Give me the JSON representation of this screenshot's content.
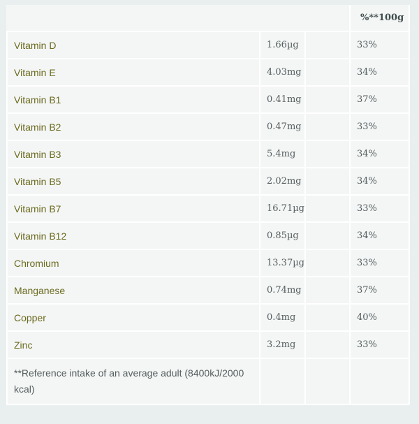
{
  "table": {
    "header": {
      "pct_label": "%**100g"
    },
    "rows": [
      {
        "name": "Vitamin D",
        "amount": "1.66µg",
        "pct": "33%"
      },
      {
        "name": "Vitamin E",
        "amount": "4.03mg",
        "pct": "34%"
      },
      {
        "name": "Vitamin B1",
        "amount": "0.41mg",
        "pct": "37%"
      },
      {
        "name": "Vitamin B2",
        "amount": "0.47mg",
        "pct": "33%"
      },
      {
        "name": "Vitamin B3",
        "amount": "5.4mg",
        "pct": "34%"
      },
      {
        "name": "Vitamin B5",
        "amount": "2.02mg",
        "pct": "34%"
      },
      {
        "name": "Vitamin B7",
        "amount": "16.71µg",
        "pct": "33%"
      },
      {
        "name": "Vitamin B12",
        "amount": "0.85µg",
        "pct": "34%"
      },
      {
        "name": "Chromium",
        "amount": "13.37µg",
        "pct": "33%"
      },
      {
        "name": "Manganese",
        "amount": "0.74mg",
        "pct": "37%"
      },
      {
        "name": "Copper",
        "amount": "0.4mg",
        "pct": "40%"
      },
      {
        "name": "Zinc",
        "amount": "3.2mg",
        "pct": "33%"
      }
    ],
    "footnote": "**Reference intake of an average adult (8400kJ/2000 kcal)"
  }
}
